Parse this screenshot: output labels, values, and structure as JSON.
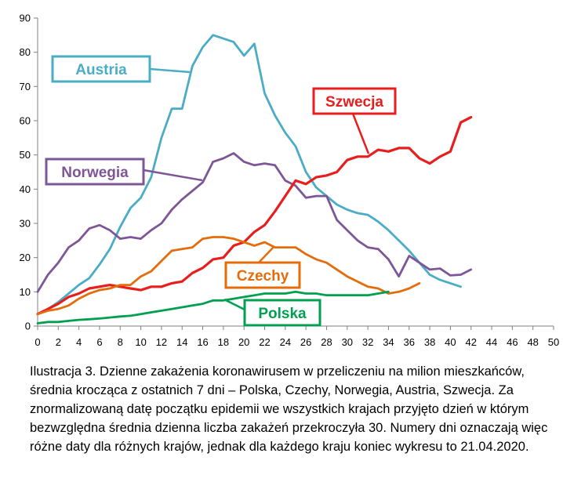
{
  "chart_data": {
    "type": "line",
    "xlim": [
      0,
      50
    ],
    "ylim": [
      0,
      90
    ],
    "x_ticks": [
      0,
      2,
      4,
      6,
      8,
      10,
      12,
      14,
      16,
      18,
      20,
      22,
      24,
      26,
      28,
      30,
      32,
      34,
      36,
      38,
      40,
      42,
      44,
      46,
      48,
      50
    ],
    "y_ticks": [
      0,
      10,
      20,
      30,
      40,
      50,
      60,
      70,
      80,
      90
    ],
    "grid": false,
    "series": [
      {
        "name": "Austria",
        "color": "#4bacc6",
        "x": [
          0,
          1,
          2,
          3,
          4,
          5,
          6,
          7,
          8,
          9,
          10,
          11,
          12,
          13,
          14,
          15,
          16,
          17,
          18,
          19,
          20,
          21,
          22,
          23,
          24,
          25,
          26,
          27,
          28,
          29,
          30,
          31,
          32,
          33,
          34,
          35,
          36,
          37,
          38,
          39,
          40,
          41
        ],
        "y": [
          3.5,
          5,
          7,
          9.5,
          12,
          14,
          18,
          22.5,
          29,
          34.5,
          37.5,
          43.5,
          55,
          63.5,
          63.5,
          76,
          81.5,
          85,
          84,
          83,
          79,
          82.5,
          68,
          61.5,
          56.5,
          52.5,
          45,
          40.5,
          38,
          35.5,
          34,
          33,
          32.5,
          30.5,
          28,
          25,
          22,
          18.5,
          15,
          13.5,
          12.5,
          11.5
        ]
      },
      {
        "name": "Norwegia",
        "color": "#7e5596",
        "x": [
          0,
          1,
          2,
          3,
          4,
          5,
          6,
          7,
          8,
          9,
          10,
          11,
          12,
          13,
          14,
          15,
          16,
          17,
          18,
          19,
          20,
          21,
          22,
          23,
          24,
          25,
          26,
          27,
          28,
          29,
          30,
          31,
          32,
          33,
          34,
          35,
          36,
          37,
          38,
          39,
          40,
          41,
          42
        ],
        "y": [
          10,
          15,
          18.5,
          23,
          25,
          28.5,
          29.5,
          28,
          25.5,
          26,
          25.5,
          28,
          30,
          34,
          37,
          39.5,
          42,
          48,
          49,
          50.5,
          48,
          47,
          47.5,
          47,
          42.5,
          41,
          37.5,
          38,
          38,
          31,
          28,
          25,
          23,
          22.5,
          19.5,
          14.5,
          20.5,
          18.5,
          16.5,
          16.8,
          14.8,
          15,
          16.5
        ]
      },
      {
        "name": "Szwecja",
        "color": "#e81e1e",
        "x": [
          0,
          1,
          2,
          3,
          4,
          5,
          6,
          7,
          8,
          9,
          10,
          11,
          12,
          13,
          14,
          15,
          16,
          17,
          18,
          19,
          20,
          21,
          22,
          23,
          24,
          25,
          26,
          27,
          28,
          29,
          30,
          31,
          32,
          33,
          34,
          35,
          36,
          37,
          38,
          39,
          40,
          41,
          42
        ],
        "y": [
          3.5,
          5,
          6.5,
          8.5,
          9.5,
          11,
          11.5,
          12,
          11.5,
          11,
          10.5,
          11.5,
          11.5,
          12.5,
          13,
          15.5,
          17,
          19.5,
          20,
          23.5,
          24.5,
          27.5,
          29.5,
          33.5,
          38,
          42.5,
          41.5,
          43.5,
          44,
          45,
          48.5,
          49.5,
          49.5,
          51.5,
          51,
          52,
          52,
          49,
          47.5,
          49.5,
          51,
          59.5,
          61
        ]
      },
      {
        "name": "Czechy",
        "color": "#e46c0a",
        "x": [
          0,
          1,
          2,
          3,
          4,
          5,
          6,
          7,
          8,
          9,
          10,
          11,
          12,
          13,
          14,
          15,
          16,
          17,
          18,
          19,
          20,
          21,
          22,
          23,
          24,
          25,
          26,
          27,
          28,
          29,
          30,
          31,
          32,
          33,
          34,
          35,
          36,
          37
        ],
        "y": [
          3.5,
          4.5,
          5,
          6,
          8,
          9.5,
          10.5,
          11,
          12,
          12,
          14.5,
          16,
          19,
          22,
          22.5,
          23,
          25.5,
          26,
          26,
          25.5,
          24.5,
          23.5,
          24.5,
          23,
          23,
          23,
          21,
          19.5,
          18.5,
          16.5,
          14.5,
          13,
          11.5,
          11,
          9.5,
          10,
          11,
          12.5
        ]
      },
      {
        "name": "Polska",
        "color": "#00a050",
        "x": [
          0,
          1,
          2,
          3,
          4,
          5,
          6,
          7,
          8,
          9,
          10,
          11,
          12,
          13,
          14,
          15,
          16,
          17,
          18,
          19,
          20,
          21,
          22,
          23,
          24,
          25,
          26,
          27,
          28,
          29,
          30,
          31,
          32,
          33,
          34
        ],
        "y": [
          0.8,
          1.2,
          1.2,
          1.5,
          1.8,
          2,
          2.2,
          2.5,
          2.8,
          3,
          3.5,
          4,
          4.5,
          5,
          5.5,
          6,
          6.5,
          7.5,
          7.5,
          8,
          8.5,
          9,
          9.5,
          9.5,
          9.5,
          10,
          9.5,
          9.5,
          9,
          9,
          9,
          9,
          9,
          9.5,
          10
        ]
      }
    ],
    "labels": [
      {
        "text": "Austria",
        "series": 0,
        "color": "#4bacc6"
      },
      {
        "text": "Norwegia",
        "series": 1,
        "color": "#7e5596"
      },
      {
        "text": "Szwecja",
        "series": 2,
        "color": "#e81e1e"
      },
      {
        "text": "Czechy",
        "series": 3,
        "color": "#e46c0a"
      },
      {
        "text": "Polska",
        "series": 4,
        "color": "#00a050"
      }
    ]
  },
  "caption": "Ilustracja  3. Dzienne zakażenia koronawirusem w przeliczeniu na milion mieszkańców, średnia krocząca z ostatnich 7 dni – Polska, Czechy, Norwegia, Austria, Szwecja.  Za znormalizowaną datę początku epidemii  we wszystkich krajach przyjęto dzień w którym bezwzględna średnia dzienna liczba zakażeń przekroczyła 30. Numery dni oznaczają więc różne daty dla różnych krajów, jednak dla każdego kraju koniec wykresu to 21.04.2020."
}
